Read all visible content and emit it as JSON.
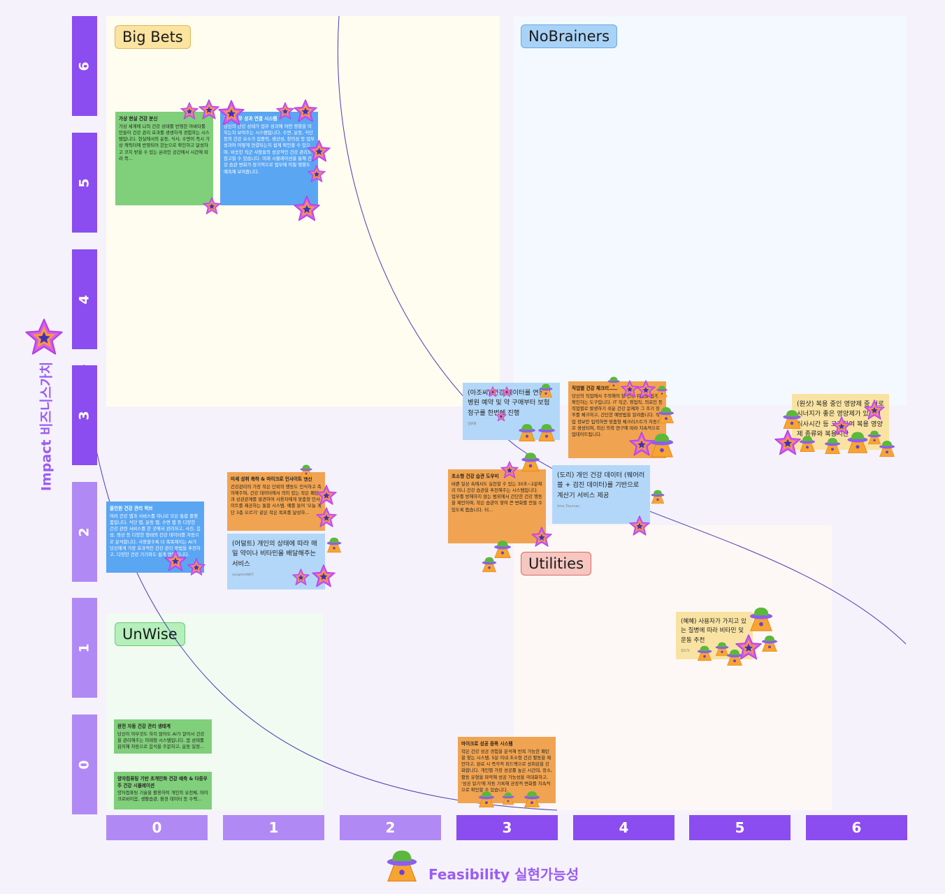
{
  "y_axis": {
    "title": "Impact 비즈니스가치",
    "ticks": [
      "6",
      "5",
      "4",
      "3",
      "2",
      "1",
      "0"
    ]
  },
  "x_axis": {
    "title": "Feasibility 실현가능성",
    "ticks": [
      "0",
      "1",
      "2",
      "3",
      "4",
      "5",
      "6"
    ]
  },
  "quadrants": {
    "big_bets": "Big Bets",
    "no_brainers": "NoBrainers",
    "unwise": "UnWise",
    "utilities": "Utilities"
  },
  "colors": {
    "axis_dark": "#8b4cf0",
    "axis_light": "#b189f5",
    "green_note": "#80cf7a",
    "blue_note": "#5aa6f2",
    "orange_note": "#f0a451",
    "light_blue_note": "#b3d7f8",
    "yellow_note": "#f9e3a3"
  },
  "icons": {
    "impact": "star-sticker",
    "feasibility": "ufo-sticker"
  },
  "notes": [
    {
      "title": "가상 현실 건강 분신",
      "body": "가상 세계에 나의 건강 상태를 반영한 아바타를 만들어 건강 관리 효과를 생생하게 경험하는 시스템입니다. 현실에서의 운동, 식사, 수면이 즉시 가상 캐릭터에 반영되어 한눈으로 확인하고 달성하고 코치 받을 수 있는 온라인 공간에서 시간에 따라 즉..."
    },
    {
      "title": "건강-업무 성과 연결 시스템",
      "body": "당신의 건강 상태가 업무 성과에 어떤 영향을 미치는지 보여주는 시스템입니다. 수면, 운동, 식단 등의 건강 요소가 집중력, 생산성, 창의성 등 업무 성과와 어떻게 연결되는지 쉽게 확인할 수 있으며, 비슷한 직군 사람들의 성공적인 건강 관리도 참고할 수 있습니다. 미래 시뮬레이션을 통해 건강 습관 변화가 장기적으로 업무에 미칠 영향도 예측해 보여줍니다."
    },
    {
      "title": "",
      "body": "(아조씨) 건강 데이터를 연동해 병원 예약 및 약 구매부터 보험 청구를 한번에 진행",
      "author": "양원해"
    },
    {
      "title": "직업별 건강 체크리스트",
      "body": "당신의 직업에서 주의해야 할 건강 위험을 쉽게 확인하는 도구입니다. IT 직군, 영업직, 의료인 등 직업별로 발생하기 쉬운 건강 문제와 그 조기 징후를 체크하고, 간단한 예방법을 알려줍니다. 직업 정보만 입력하면 맞춤형 체크리스트가 자동으로 생성되며, 최신 의학 연구에 따라 지속적으로 업데이트됩니다."
    },
    {
      "title": "",
      "body": "(원샷) 복용 중인 영양제 중 서로 시너지가 좋은 영양제가 있는지 식사시간 등 고려하여 복용 영양제 종류와 복용시간"
    },
    {
      "title": "올인원 건강 관리 허브",
      "body": "여러 건강 앱과 서비스를 하나로 모은 통합 플랫폼입니다. 식단 앱, 운동 앱, 수면 앱 등 다양한 건강 관련 서비스를 한 곳에서 관리하고, 사진, 음성, 영상 등 다양한 형태의 건강 데이터를 자동으로 분석합니다. 사용할수록 더 똑똑해지는 AI가 당신에게 가장 효과적인 건강 관리 방법을 추천하고, 다양한 건강 기기와도 쉽게 연동됩니다."
    },
    {
      "title": "미세 성취 축하 & 마이크로 인사이트 엔진",
      "body": "건강관리의 가장 작은 단위의 행동도 인식하고 축하해주며, 건강 데이터에서 의미 있는 작은 패턴과 상관관계를 발견하여 사용자에게 맞춤형 인사이트를 제공하는 통합 시스템. 예를 들어 '오늘 계단 3층 오르기' 같은 작은 목표를 달성하..."
    },
    {
      "title": "",
      "body": "(어덜트) 개인의 상태에 따라 매일 약이나 비타민을 배달해주는 서비스",
      "author": "sungmin0807"
    },
    {
      "title": "초소형 건강 습관 도우미",
      "body": "바쁜 일상 속에서도 실천할 수 있는 30초~2분짜리 미니 건강 습관을 추천해주는 시스템입니다. 업무를 방해하지 않는 범위에서 간단한 건강 행동을 제안하며, 작은 습관이 쌓여 큰 변화를 만들 수 있도록 돕습니다. 터..."
    },
    {
      "title": "",
      "body": "(도리) 개인 건강 데이터 (웨어러블 + 검진 데이터)를 기반으로 계산기 서비스 제공",
      "author": "Uma Thurman"
    },
    {
      "title": "",
      "body": "(혜혜) 사용자가 가지고 있는 질병에 따라 비타민 및 운동 추천",
      "author": "정도하"
    },
    {
      "title": "완전 자동 건강 관리 생태계",
      "body": "당신이 아무것도 하지 않아도 AI가 알아서 건강을 관리해주는 미래형 시스템입니다. 몸 상태를 감지해 자동으로 음식을 주문하고, 운동 일정..."
    },
    {
      "title": "양자컴퓨팅 기반 초개인화 건강 예측 & 다중우주 건강 시뮬레이션",
      "body": "양자컴퓨팅 기술을 활용하여 개인의 유전체, 마이크로바이옴, 생활습관, 환경 데이터 등 수백..."
    },
    {
      "title": "마이크로 성공 증폭 시스템",
      "body": "작은 건강 성공 경험을 분석해 반복 가능한 패턴을 찾는 시스템. 5분 이내 초소형 건강 활동을 제안하고, 완료 시 즉각적 피드백으로 성취감을 강화합니다. 개인별 가장 성공률 높은 시간대, 장소, 활동 유형을 파악해 성공 가능성을 극대화하고, '성공 일기'에 자동 기록해 긍정적 변화를 지속적으로 확인할 수 있습니다."
    }
  ]
}
